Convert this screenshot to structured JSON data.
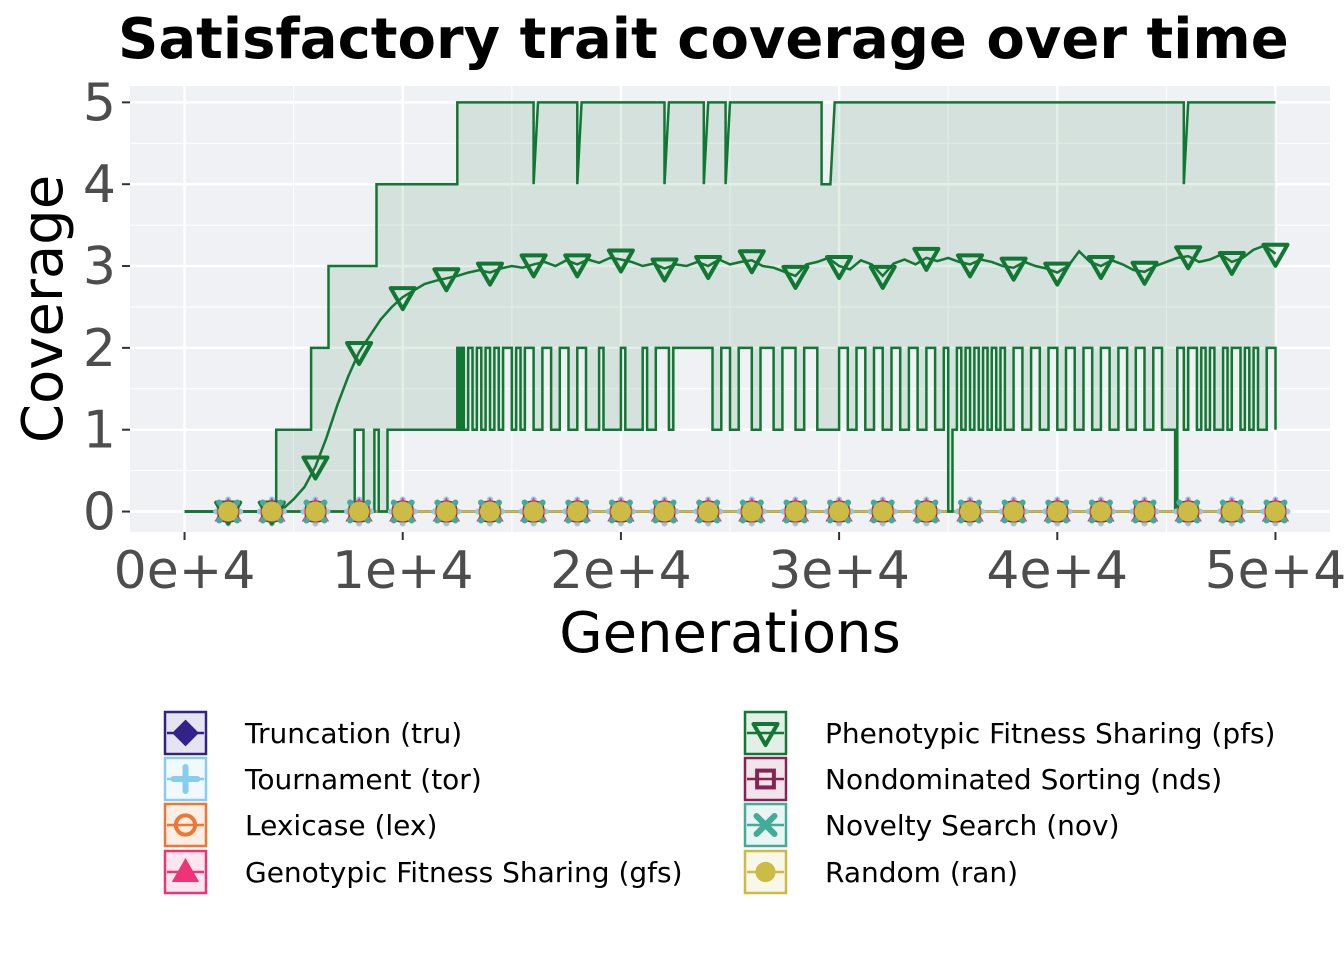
{
  "chart_data": {
    "type": "line",
    "title": "Satisfactory trait coverage over time",
    "xlabel": "Generations",
    "ylabel": "Coverage",
    "xlim": [
      -2500,
      52500
    ],
    "ylim": [
      -0.25,
      5.2
    ],
    "xticks": [
      0,
      10000,
      20000,
      30000,
      40000,
      50000
    ],
    "xtick_labels": [
      "0e+4",
      "1e+4",
      "2e+4",
      "3e+4",
      "4e+4",
      "5e+4"
    ],
    "yticks": [
      0,
      1,
      2,
      3,
      4,
      5
    ],
    "ytick_labels": [
      "0",
      "1",
      "2",
      "3",
      "4",
      "5"
    ],
    "grid": true,
    "legend_position": "bottom",
    "legend_columns": 2,
    "marker_x": [
      2000,
      4000,
      6000,
      8000,
      10000,
      12000,
      14000,
      16000,
      18000,
      20000,
      22000,
      24000,
      26000,
      28000,
      30000,
      32000,
      34000,
      36000,
      38000,
      40000,
      42000,
      44000,
      46000,
      48000,
      50000
    ],
    "series": [
      {
        "name": "Truncation (tru)",
        "color": "#332288",
        "marker": "diamond",
        "flat_value": 0
      },
      {
        "name": "Tournament (tor)",
        "color": "#88CCEE",
        "marker": "plus",
        "flat_value": 0
      },
      {
        "name": "Lexicase (lex)",
        "color": "#EE7733",
        "marker": "circle-open",
        "flat_value": 0
      },
      {
        "name": "Genotypic Fitness Sharing (gfs)",
        "color": "#EE3377",
        "marker": "triangle-up",
        "flat_value": 0
      },
      {
        "name": "Phenotypic Fitness Sharing (pfs)",
        "color": "#117733",
        "marker": "triangle-down",
        "mean": {
          "x": [
            0,
            3000,
            4000,
            4500,
            5000,
            5500,
            6000,
            6500,
            7000,
            7500,
            8000,
            8500,
            9000,
            9500,
            10000,
            10500,
            11000,
            11500,
            12000,
            12500,
            13000,
            13500,
            14000,
            14500,
            15000,
            15500,
            16000,
            16500,
            17000,
            17500,
            18000,
            18500,
            19000,
            19500,
            20000,
            20500,
            21000,
            21500,
            22000,
            22500,
            23000,
            23500,
            24000,
            24500,
            25000,
            25500,
            26000,
            26500,
            27000,
            27500,
            28000,
            28500,
            29000,
            29500,
            30000,
            30500,
            31000,
            31500,
            32000,
            32500,
            33000,
            33500,
            34000,
            34500,
            35000,
            35500,
            36000,
            36500,
            37000,
            37500,
            38000,
            38500,
            39000,
            39500,
            40000,
            40500,
            41000,
            41500,
            42000,
            42500,
            43000,
            43500,
            44000,
            44500,
            45000,
            45500,
            46000,
            46500,
            47000,
            47500,
            48000,
            48500,
            49000,
            49500,
            50000
          ],
          "y": [
            0,
            0,
            0,
            0.03,
            0.15,
            0.3,
            0.55,
            0.9,
            1.3,
            1.65,
            1.95,
            2.15,
            2.35,
            2.5,
            2.62,
            2.7,
            2.78,
            2.82,
            2.85,
            2.88,
            2.92,
            2.95,
            2.92,
            2.97,
            3.0,
            2.98,
            3.02,
            3.05,
            3.0,
            3.07,
            3.02,
            3.08,
            3.04,
            3.1,
            3.08,
            3.05,
            3.0,
            3.03,
            2.97,
            3.02,
            3.0,
            3.05,
            3.0,
            3.08,
            3.02,
            3.05,
            3.07,
            3.0,
            2.98,
            2.93,
            2.88,
            3.02,
            3.05,
            3.1,
            3.0,
            2.96,
            3.07,
            3.02,
            2.88,
            3.03,
            3.08,
            3.02,
            3.1,
            3.06,
            3.1,
            3.05,
            3.02,
            3.08,
            3.05,
            3.0,
            2.98,
            3.05,
            3.0,
            2.97,
            2.92,
            3.0,
            3.18,
            3.05,
            3.0,
            3.07,
            3.02,
            2.95,
            2.93,
            3.0,
            3.05,
            3.1,
            3.12,
            3.05,
            3.08,
            3.14,
            3.05,
            3.1,
            3.2,
            3.25,
            3.15
          ]
        },
        "upper": {
          "x": [
            0,
            3500,
            4200,
            4200,
            5800,
            5800,
            6600,
            6600,
            8800,
            8800,
            12500,
            12500,
            16000,
            16000,
            16200,
            18000,
            18000,
            18200,
            22000,
            22000,
            22200,
            23800,
            23800,
            24000,
            24800,
            24800,
            25000,
            29200,
            29200,
            29400,
            29600,
            29600,
            29800,
            45800,
            45800,
            46000,
            50000
          ],
          "y": [
            0,
            0,
            0,
            1,
            1,
            2,
            2,
            3,
            3,
            4,
            4,
            5,
            5,
            4,
            5,
            5,
            4,
            5,
            5,
            4,
            5,
            5,
            4,
            5,
            5,
            4,
            5,
            5,
            4,
            4,
            4,
            4,
            5,
            5,
            4,
            5,
            5
          ]
        },
        "lower": {
          "x": [
            0,
            7800,
            7800,
            8000,
            8200,
            8200,
            8700,
            8700,
            8900,
            8900,
            9300,
            9300,
            12500,
            12500,
            12600,
            12600,
            12700,
            12700,
            12800,
            12800,
            13000,
            13000,
            13200,
            13200,
            13400,
            13400,
            13600,
            13600,
            13800,
            13800,
            14000,
            14000,
            14200,
            14200,
            14400,
            14400,
            14600,
            14600,
            15000,
            15000,
            15200,
            15200,
            15400,
            15400,
            15600,
            15600,
            16000,
            16000,
            16400,
            16400,
            16800,
            16800,
            17200,
            17200,
            17600,
            17600,
            18000,
            18000,
            18400,
            18400,
            19000,
            19000,
            19200,
            19200,
            20000,
            20000,
            20200,
            20200,
            21000,
            21000,
            21200,
            21200,
            21600,
            21600,
            22200,
            22200,
            22400,
            22400,
            24200,
            24200,
            24600,
            24600,
            25000,
            25000,
            25400,
            25400,
            26000,
            26000,
            26400,
            26400,
            27000,
            27000,
            27400,
            27400,
            28000,
            28000,
            28400,
            28400,
            29000,
            29000,
            30000,
            30000,
            30400,
            30400,
            30800,
            30800,
            31200,
            31200,
            31600,
            31600,
            32000,
            32000,
            32400,
            32400,
            32800,
            32800,
            33200,
            33200,
            33600,
            33600,
            34000,
            34000,
            34400,
            34400,
            34800,
            34800,
            35000,
            35000,
            35200,
            35200,
            35400,
            35400,
            35600,
            35600,
            35800,
            35800,
            36000,
            36000,
            36200,
            36200,
            36400,
            36400,
            36600,
            36600,
            36800,
            36800,
            37000,
            37000,
            37200,
            37200,
            37400,
            37400,
            37600,
            37600,
            38000,
            38000,
            38400,
            38400,
            38800,
            38800,
            39200,
            39200,
            39600,
            39600,
            40000,
            40000,
            40400,
            40400,
            40800,
            40800,
            41200,
            41200,
            41600,
            41600,
            42000,
            42000,
            42400,
            42400,
            42800,
            42800,
            43200,
            43200,
            43600,
            43600,
            44000,
            44000,
            44400,
            44400,
            44800,
            44800,
            45400,
            45400,
            45500,
            45500,
            45800,
            45800,
            46000,
            46000,
            46400,
            46400,
            46600,
            46600,
            46800,
            46800,
            47000,
            47000,
            47200,
            47200,
            47600,
            47600,
            47800,
            47800,
            48000,
            48000,
            48400,
            48400,
            48600,
            48600,
            48800,
            48800,
            49000,
            49000,
            49200,
            49200,
            49600,
            49600,
            50000,
            50000
          ],
          "y": [
            0,
            0,
            1,
            1,
            1,
            0,
            0,
            1,
            1,
            0,
            0,
            1,
            1,
            2,
            2,
            1,
            1,
            2,
            2,
            1,
            1,
            2,
            2,
            1,
            1,
            2,
            2,
            1,
            1,
            2,
            2,
            1,
            1,
            2,
            2,
            1,
            1,
            2,
            2,
            1,
            1,
            2,
            2,
            1,
            1,
            2,
            2,
            1,
            1,
            2,
            2,
            1,
            1,
            2,
            2,
            1,
            1,
            2,
            2,
            1,
            1,
            2,
            2,
            1,
            1,
            2,
            2,
            1,
            1,
            2,
            2,
            1,
            1,
            2,
            2,
            1,
            1,
            2,
            2,
            1,
            1,
            2,
            2,
            1,
            1,
            2,
            2,
            1,
            1,
            2,
            2,
            1,
            1,
            2,
            2,
            1,
            1,
            2,
            2,
            1,
            1,
            2,
            2,
            1,
            1,
            2,
            2,
            1,
            1,
            2,
            2,
            1,
            1,
            2,
            2,
            1,
            1,
            2,
            2,
            1,
            1,
            2,
            2,
            1,
            1,
            2,
            2,
            0,
            0,
            1,
            1,
            2,
            2,
            1,
            1,
            2,
            2,
            1,
            1,
            2,
            2,
            1,
            1,
            2,
            2,
            1,
            1,
            2,
            2,
            1,
            1,
            2,
            2,
            1,
            1,
            2,
            2,
            1,
            1,
            2,
            2,
            1,
            1,
            2,
            2,
            1,
            1,
            2,
            2,
            1,
            1,
            2,
            2,
            1,
            1,
            2,
            2,
            1,
            1,
            2,
            2,
            1,
            1,
            2,
            2,
            1,
            1,
            2,
            2,
            1,
            1,
            0,
            0,
            2,
            2,
            1,
            1,
            2,
            2,
            1,
            1,
            2,
            2,
            1,
            1,
            2,
            2,
            1,
            1,
            2,
            2,
            1,
            1,
            2,
            2,
            1,
            1,
            2,
            2,
            1,
            1,
            2,
            2,
            1,
            1,
            2,
            2,
            1
          ]
        }
      },
      {
        "name": "Nondominated Sorting (nds)",
        "color": "#882255",
        "marker": "square-open",
        "flat_value": 0
      },
      {
        "name": "Novelty Search (nov)",
        "color": "#44AA99",
        "marker": "x",
        "flat_value": 0
      },
      {
        "name": "Random (ran)",
        "color": "#CCBB44",
        "marker": "circle",
        "flat_value": 0
      }
    ]
  }
}
